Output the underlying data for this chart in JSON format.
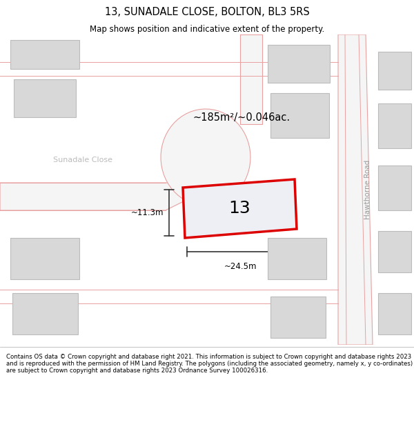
{
  "title": "13, SUNADALE CLOSE, BOLTON, BL3 5RS",
  "subtitle": "Map shows position and indicative extent of the property.",
  "footer": "Contains OS data © Crown copyright and database right 2021. This information is subject to Crown copyright and database rights 2023 and is reproduced with the permission of HM Land Registry. The polygons (including the associated geometry, namely x, y co-ordinates) are subject to Crown copyright and database rights 2023 Ordnance Survey 100026316.",
  "area_text": "~185m²/~0.046ac.",
  "number_text": "13",
  "width_text": "~24.5m",
  "height_text": "~11.3m",
  "road_label_hawthorne": "Hawthorne Road",
  "road_label_sunadale": "Sunadale Close",
  "road_stroke": "#e8a0a0",
  "road_fill": "#f5f5f5",
  "building_fill": "#d8d8d8",
  "building_edge": "#bbbbbb",
  "highlight_fill": "#eeeef5",
  "highlight_edge": "#dd0000",
  "bg_white": "#ffffff"
}
